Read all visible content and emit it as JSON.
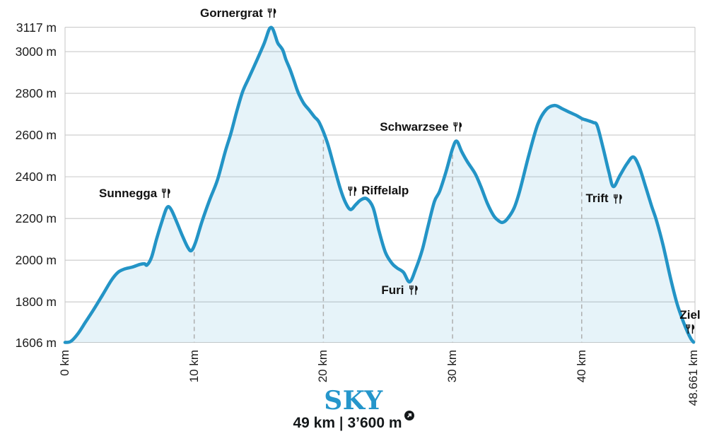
{
  "colors": {
    "line": "#2394c6",
    "fill": "#2394c6",
    "fill_opacity": 0.115,
    "grid": "#c9c9c9",
    "dashed_grid": "#aeaeae",
    "text": "#1c1c1c",
    "accent": "#2596cb",
    "icon": "#111111"
  },
  "footer": {
    "race_name": "SKY",
    "distance": "49 km",
    "separator": "|",
    "elevation_gain": "3’600 m",
    "gain_icon": "arrow-up-right-circle-icon"
  },
  "chart_data": {
    "type": "area",
    "title": "SKY",
    "x_unit": "km",
    "y_unit": "m",
    "xlim": [
      0,
      48.661
    ],
    "ylim": [
      1606,
      3117
    ],
    "grid": "horizontal solid lines at y ticks; vertical dashed lines at 10/20/30/40 km clipped to the filled area; full light-gray plot border",
    "legend": "none",
    "y_ticks": [
      {
        "value": 3117,
        "label": "3117 m"
      },
      {
        "value": 3000,
        "label": "3000 m"
      },
      {
        "value": 2800,
        "label": "2800 m"
      },
      {
        "value": 2600,
        "label": "2600 m"
      },
      {
        "value": 2400,
        "label": "2400 m"
      },
      {
        "value": 2200,
        "label": "2200 m"
      },
      {
        "value": 2000,
        "label": "2000 m"
      },
      {
        "value": 1800,
        "label": "1800 m"
      },
      {
        "value": 1606,
        "label": "1606 m"
      }
    ],
    "x_ticks": [
      {
        "value": 0,
        "label": "0 km",
        "dashed": false
      },
      {
        "value": 10,
        "label": "10 km",
        "dashed": true
      },
      {
        "value": 20,
        "label": "20 km",
        "dashed": true
      },
      {
        "value": 30,
        "label": "30 km",
        "dashed": true
      },
      {
        "value": 40,
        "label": "40 km",
        "dashed": true
      },
      {
        "value": 48.661,
        "label": "48.661 km",
        "dashed": false
      }
    ],
    "stations": [
      {
        "name": "Sunnegga",
        "km": 8.0,
        "elevation": 2256,
        "icon": "fork-knife-icon",
        "icon_pos": "after",
        "ox": -47,
        "oy": -19
      },
      {
        "name": "Gornergrat",
        "km": 15.95,
        "elevation": 3117,
        "icon": "fork-knife-icon",
        "icon_pos": "after",
        "ox": -46,
        "oy": -20
      },
      {
        "name": "Riffelalp",
        "km": 22.1,
        "elevation": 2243,
        "icon": "fork-knife-icon",
        "icon_pos": "before",
        "ox": 39,
        "oy": -26
      },
      {
        "name": "Furi",
        "km": 26.68,
        "elevation": 1896,
        "icon": "fork-knife-icon",
        "icon_pos": "after",
        "ox": -14,
        "oy": 12
      },
      {
        "name": "Schwarzsee",
        "km": 30.32,
        "elevation": 2571,
        "icon": "fork-knife-icon",
        "icon_pos": "after",
        "ox": -50,
        "oy": -20
      },
      {
        "name": "Trift",
        "km": 42.45,
        "elevation": 2353,
        "icon": "fork-knife-icon",
        "icon_pos": "after",
        "ox": -13,
        "oy": 17
      },
      {
        "name": "Ziel",
        "km": 48.661,
        "elevation": 1607,
        "icon": "fork-knife-icon",
        "icon_pos": "below",
        "ox": -5,
        "oy": -29
      }
    ],
    "profile": [
      [
        0,
        1606
      ],
      [
        0.45,
        1611
      ],
      [
        1.0,
        1648
      ],
      [
        1.6,
        1705
      ],
      [
        2.2,
        1762
      ],
      [
        2.9,
        1833
      ],
      [
        3.6,
        1905
      ],
      [
        4.1,
        1942
      ],
      [
        4.6,
        1958
      ],
      [
        5.2,
        1967
      ],
      [
        5.8,
        1980
      ],
      [
        6.15,
        1983
      ],
      [
        6.35,
        1977
      ],
      [
        6.7,
        2015
      ],
      [
        7.1,
        2105
      ],
      [
        7.6,
        2205
      ],
      [
        7.85,
        2248
      ],
      [
        8.05,
        2256
      ],
      [
        8.3,
        2233
      ],
      [
        8.7,
        2175
      ],
      [
        9.1,
        2115
      ],
      [
        9.5,
        2062
      ],
      [
        9.78,
        2046
      ],
      [
        10.1,
        2085
      ],
      [
        10.6,
        2185
      ],
      [
        11.2,
        2290
      ],
      [
        11.8,
        2385
      ],
      [
        12.4,
        2520
      ],
      [
        12.85,
        2610
      ],
      [
        13.3,
        2715
      ],
      [
        13.75,
        2808
      ],
      [
        14.2,
        2870
      ],
      [
        14.7,
        2938
      ],
      [
        15.2,
        3008
      ],
      [
        15.42,
        3040
      ],
      [
        15.58,
        3068
      ],
      [
        15.72,
        3094
      ],
      [
        15.83,
        3110
      ],
      [
        15.95,
        3116
      ],
      [
        16.07,
        3110
      ],
      [
        16.18,
        3094
      ],
      [
        16.32,
        3068
      ],
      [
        16.48,
        3040
      ],
      [
        16.85,
        3008
      ],
      [
        17.1,
        2962
      ],
      [
        17.4,
        2918
      ],
      [
        17.66,
        2873
      ],
      [
        17.95,
        2820
      ],
      [
        18.15,
        2790
      ],
      [
        18.5,
        2750
      ],
      [
        18.9,
        2720
      ],
      [
        19.3,
        2688
      ],
      [
        19.7,
        2658
      ],
      [
        20.3,
        2565
      ],
      [
        20.8,
        2455
      ],
      [
        21.3,
        2345
      ],
      [
        21.7,
        2278
      ],
      [
        22.1,
        2243
      ],
      [
        22.5,
        2266
      ],
      [
        22.9,
        2289
      ],
      [
        23.35,
        2295
      ],
      [
        23.85,
        2252
      ],
      [
        24.3,
        2142
      ],
      [
        24.8,
        2038
      ],
      [
        25.3,
        1986
      ],
      [
        25.7,
        1963
      ],
      [
        26.2,
        1942
      ],
      [
        26.68,
        1896
      ],
      [
        27.15,
        1958
      ],
      [
        27.65,
        2048
      ],
      [
        28.1,
        2162
      ],
      [
        28.6,
        2282
      ],
      [
        29.0,
        2330
      ],
      [
        29.5,
        2425
      ],
      [
        30.0,
        2535
      ],
      [
        30.32,
        2571
      ],
      [
        30.7,
        2522
      ],
      [
        31.15,
        2472
      ],
      [
        31.75,
        2415
      ],
      [
        32.2,
        2352
      ],
      [
        32.7,
        2272
      ],
      [
        33.2,
        2212
      ],
      [
        33.55,
        2190
      ],
      [
        33.85,
        2181
      ],
      [
        34.2,
        2195
      ],
      [
        34.75,
        2248
      ],
      [
        35.2,
        2332
      ],
      [
        35.9,
        2502
      ],
      [
        36.6,
        2652
      ],
      [
        37.25,
        2722
      ],
      [
        37.9,
        2742
      ],
      [
        38.5,
        2726
      ],
      [
        39.1,
        2708
      ],
      [
        39.6,
        2694
      ],
      [
        40.05,
        2678
      ],
      [
        40.35,
        2672
      ],
      [
        40.6,
        2667
      ],
      [
        40.9,
        2660
      ],
      [
        41.2,
        2645
      ],
      [
        41.65,
        2540
      ],
      [
        42.1,
        2424
      ],
      [
        42.45,
        2353
      ],
      [
        42.95,
        2405
      ],
      [
        43.5,
        2462
      ],
      [
        44.0,
        2495
      ],
      [
        44.45,
        2448
      ],
      [
        44.95,
        2352
      ],
      [
        45.4,
        2262
      ],
      [
        45.8,
        2188
      ],
      [
        46.3,
        2072
      ],
      [
        46.9,
        1908
      ],
      [
        47.4,
        1788
      ],
      [
        47.9,
        1700
      ],
      [
        48.2,
        1655
      ],
      [
        48.45,
        1624
      ],
      [
        48.58,
        1613
      ],
      [
        48.661,
        1607
      ]
    ]
  }
}
